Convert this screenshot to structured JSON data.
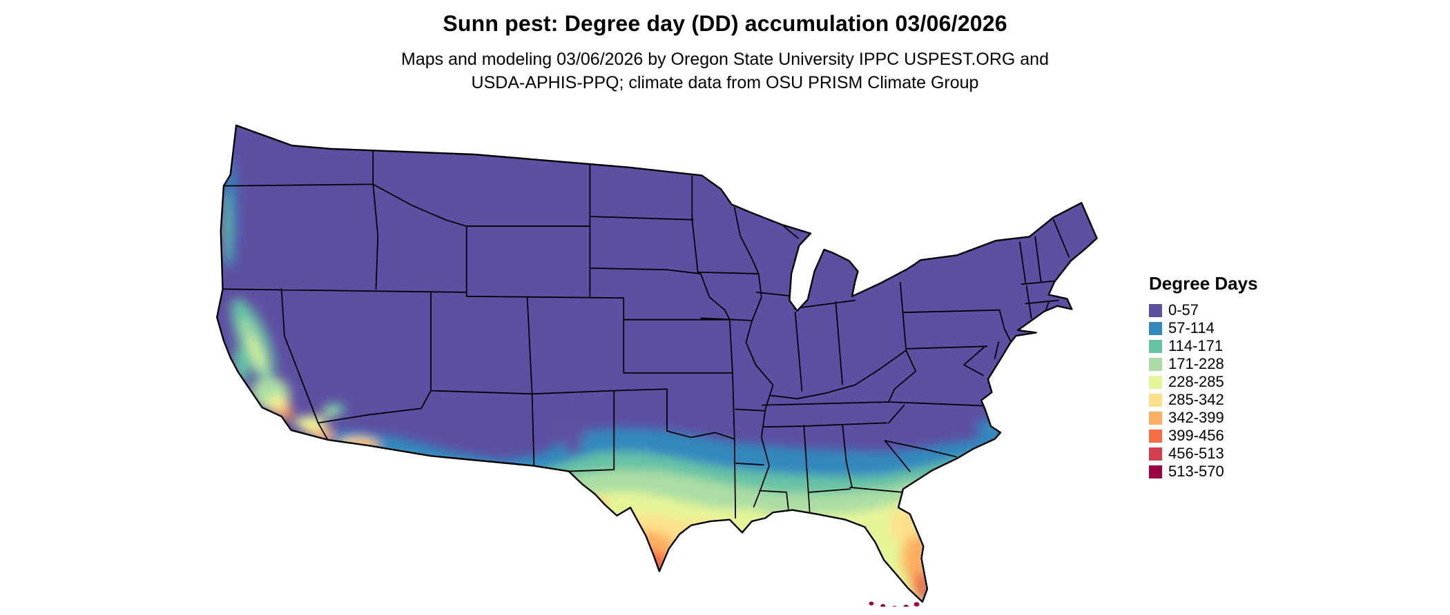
{
  "header": {
    "title": "Sunn pest: Degree day (DD) accumulation 03/06/2026",
    "subtitle_lines": [
      "Maps and modeling 03/06/2026 by Oregon State University IPPC USPEST.ORG and",
      "USDA-APHIS-PPQ; climate data from OSU PRISM Climate Group"
    ]
  },
  "legend": {
    "title": "Degree Days",
    "items": [
      {
        "label": "0-57",
        "color": "#5e4fa2"
      },
      {
        "label": "57-114",
        "color": "#3288bd"
      },
      {
        "label": "114-171",
        "color": "#66c2a5"
      },
      {
        "label": "171-228",
        "color": "#abdda4"
      },
      {
        "label": "228-285",
        "color": "#e6f598"
      },
      {
        "label": "285-342",
        "color": "#fee08b"
      },
      {
        "label": "342-399",
        "color": "#fdae61"
      },
      {
        "label": "399-456",
        "color": "#f46d43"
      },
      {
        "label": "456-513",
        "color": "#d53e4f"
      },
      {
        "label": "513-570",
        "color": "#9e0142"
      }
    ]
  },
  "map": {
    "region": "Contiguous United States",
    "type": "degree-day accumulation choropleth raster",
    "base_color": "#5e4fa2",
    "background_color": "#ffffff",
    "boundary_color": "#000000"
  }
}
